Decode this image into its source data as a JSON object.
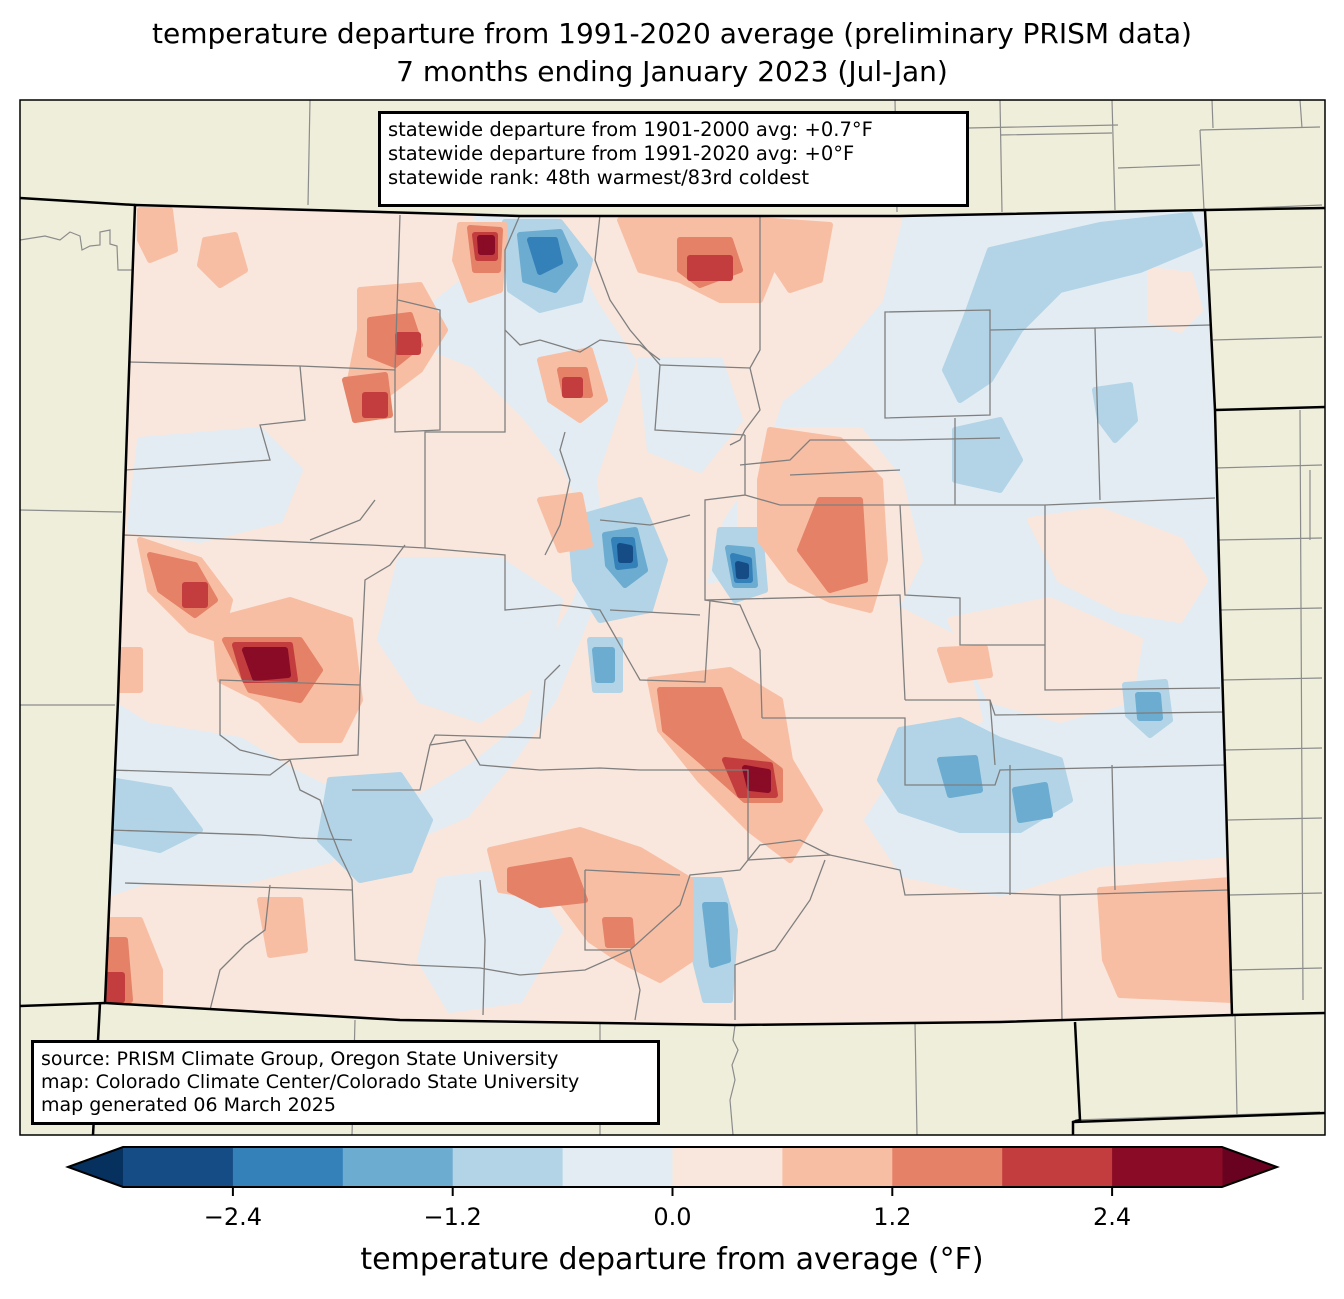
{
  "title": {
    "line1": "temperature departure from 1991-2020 average (preliminary PRISM data)",
    "line2": "7 months ending January 2023 (Jul-Jan)"
  },
  "stats": {
    "line1": "statewide departure from 1901-2000 avg: +0.7°F",
    "line2": "statewide departure from 1991-2020 avg: +0°F",
    "line3": "statewide rank: 48th warmest/83rd coldest"
  },
  "source": {
    "line1": "source: PRISM Climate Group, Oregon State University",
    "line2": "map: Colorado Climate Center/Colorado State University",
    "line3": "map generated 06 March 2025"
  },
  "colors": {
    "land_outside": "#efeedb",
    "state_border": "#000000",
    "county_border": "#808080"
  },
  "chart_data": {
    "type": "heatmap",
    "title": "temperature departure from 1991-2020 average (preliminary PRISM data)",
    "subtitle": "7 months ending January 2023 (Jul-Jan)",
    "region": "Colorado",
    "colorbar": {
      "label": "temperature departure from average (°F)",
      "range": [
        -3.0,
        3.0
      ],
      "levels": [
        -3.0,
        -2.4,
        -1.8,
        -1.2,
        -0.6,
        0.0,
        0.6,
        1.2,
        1.8,
        2.4,
        3.0
      ],
      "colors": [
        "#154c85",
        "#3480b9",
        "#6bacd0",
        "#b2d4e6",
        "#e3ecf3",
        "#f9e7dd",
        "#f8bea4",
        "#e48167",
        "#c43d3e",
        "#8a0b26"
      ],
      "extend_low_color": "#06305e",
      "extend_high_color": "#680220",
      "ticks": [
        -2.4,
        -1.2,
        0.0,
        1.2,
        2.4
      ],
      "tick_labels": [
        "−2.4",
        "−1.2",
        "0.0",
        "1.2",
        "2.4"
      ],
      "orientation": "horizontal",
      "extend": "both"
    },
    "statewide_departure_1901_2000_F": 0.7,
    "statewide_departure_1991_2020_F": 0,
    "statewide_rank_warmest": 48,
    "statewide_rank_coldest": 83
  }
}
